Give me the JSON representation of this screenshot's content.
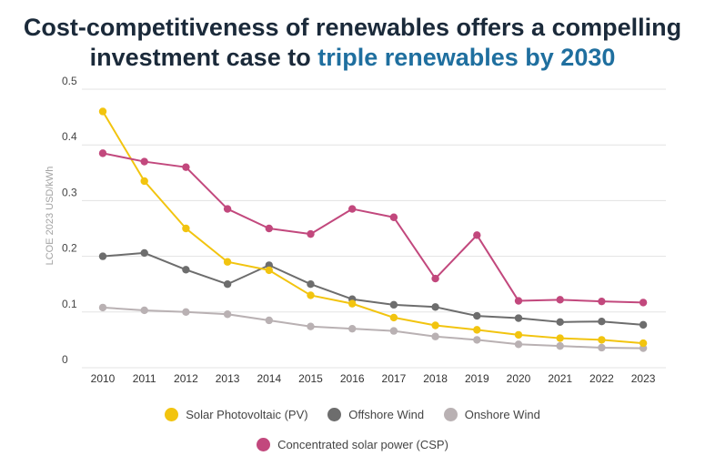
{
  "title": {
    "line1": "Cost-competitiveness of renewables offers a compelling",
    "line2_plain": "investment case to ",
    "line2_accent": "triple renewables by 2030"
  },
  "colors": {
    "title": "#1b2a3a",
    "accent": "#1f6f9f",
    "solar": "#f2c40f",
    "offshore": "#6d6d6d",
    "onshore": "#b9b1b3",
    "csp": "#c2487d"
  },
  "chart_data": {
    "type": "line",
    "ylabel": "LCOE 2023 USD/kWh",
    "xlabel": "",
    "ylim": [
      0,
      0.5
    ],
    "yticks": [
      0,
      0.1,
      0.2,
      0.3,
      0.4,
      0.5
    ],
    "ytick_labels": [
      "0",
      "0.1",
      "0.2",
      "0.3",
      "0.4",
      "0.5"
    ],
    "grid": true,
    "legend_position": "bottom",
    "x": [
      "2010",
      "2011",
      "2012",
      "2013",
      "2014",
      "2015",
      "2016",
      "2017",
      "2018",
      "2019",
      "2020",
      "2021",
      "2022",
      "2023"
    ],
    "series": [
      {
        "key": "solar",
        "name": "Solar Photovoltaic (PV)",
        "values": [
          0.46,
          0.335,
          0.25,
          0.19,
          0.175,
          0.13,
          0.115,
          0.09,
          0.076,
          0.068,
          0.059,
          0.053,
          0.05,
          0.044
        ]
      },
      {
        "key": "offshore",
        "name": "Offshore Wind",
        "values": [
          0.2,
          0.206,
          0.176,
          0.15,
          0.184,
          0.15,
          0.123,
          0.113,
          0.109,
          0.093,
          0.089,
          0.082,
          0.083,
          0.077
        ]
      },
      {
        "key": "onshore",
        "name": "Onshore Wind",
        "values": [
          0.108,
          0.103,
          0.1,
          0.096,
          0.085,
          0.074,
          0.07,
          0.066,
          0.056,
          0.05,
          0.042,
          0.039,
          0.036,
          0.035
        ]
      },
      {
        "key": "csp",
        "name": "Concentrated solar power (CSP)",
        "values": [
          0.385,
          0.37,
          0.36,
          0.285,
          0.25,
          0.24,
          0.285,
          0.27,
          0.16,
          0.238,
          0.12,
          0.122,
          0.119,
          0.117
        ]
      }
    ]
  }
}
